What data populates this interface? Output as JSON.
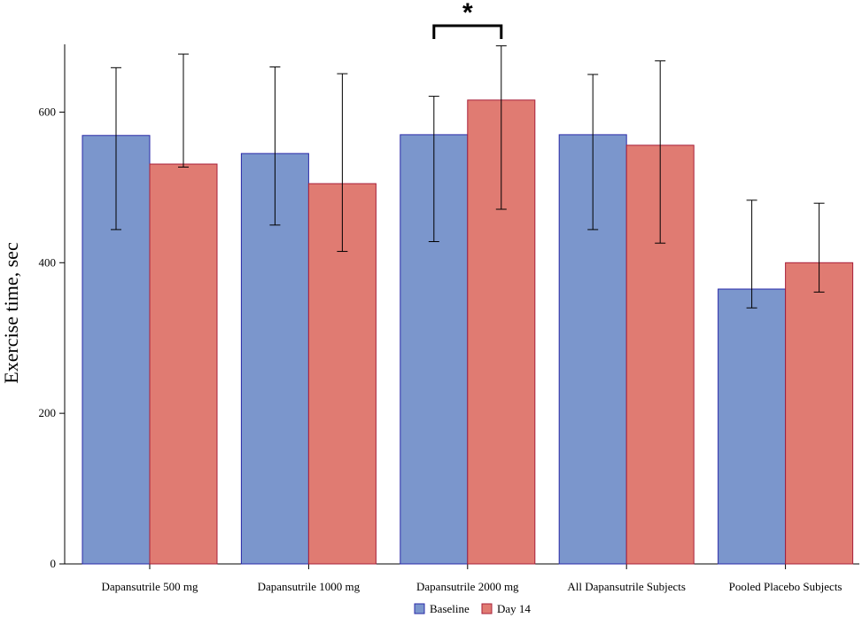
{
  "chart_data": {
    "type": "bar",
    "title": "",
    "ylabel": "Exercise time, sec",
    "xlabel": "",
    "ylim": [
      0,
      690
    ],
    "yticks": [
      0,
      200,
      400,
      600
    ],
    "categories": [
      "Dapansutrile 500 mg",
      "Dapansutrile 1000 mg",
      "Dapansutrile 2000 mg",
      "All Dapansutrile Subjects",
      "Pooled Placebo Subjects"
    ],
    "series": [
      {
        "name": "Baseline",
        "color": "#7b96cc",
        "edge": "#2a2aa8",
        "values": [
          569,
          545,
          570,
          570,
          365
        ],
        "err_low": [
          444,
          450,
          428,
          444,
          340
        ],
        "err_high": [
          659,
          660,
          621,
          650,
          483
        ]
      },
      {
        "name": "Day 14",
        "color": "#e07b72",
        "edge": "#a8203a",
        "values": [
          531,
          505,
          616,
          556,
          400
        ],
        "err_low": [
          527,
          415,
          471,
          426,
          361
        ],
        "err_high": [
          677,
          651,
          688,
          668,
          479
        ]
      }
    ],
    "legend": {
      "position": "bottom-center"
    },
    "grid": false,
    "annotations": [
      {
        "text": "*",
        "category_index": 2,
        "type": "significance-bracket"
      }
    ]
  }
}
